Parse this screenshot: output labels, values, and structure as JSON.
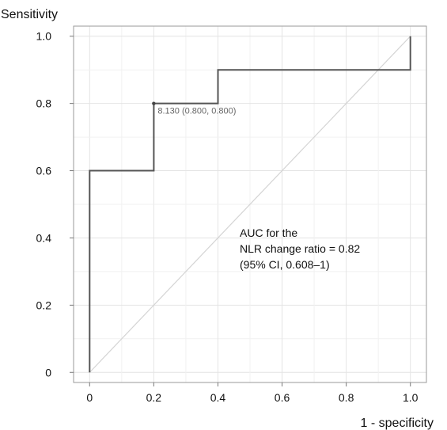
{
  "chart_data": {
    "type": "line",
    "title": "",
    "xlabel": "1 - specificity",
    "ylabel": "Sensitivity",
    "xlim": [
      -0.05,
      1.05
    ],
    "ylim": [
      -0.03,
      1.03
    ],
    "grid": true,
    "x_ticks": [
      0,
      0.2,
      0.4,
      0.6,
      0.8,
      1.0
    ],
    "x_tick_labels": [
      "0",
      "0.2",
      "0.4",
      "0.6",
      "0.8",
      "1.0"
    ],
    "y_ticks": [
      0,
      0.2,
      0.4,
      0.6,
      0.8,
      1.0
    ],
    "y_tick_labels": [
      "0",
      "0.2",
      "0.4",
      "0.6",
      "0.8",
      "1.0"
    ],
    "series": [
      {
        "style": "step",
        "color": "#555555",
        "x": [
          0,
          0,
          0.2,
          0.2,
          0.4,
          0.4,
          1.0,
          1.0
        ],
        "y": [
          0,
          0.6,
          0.6,
          0.8,
          0.8,
          0.9,
          0.9,
          1.0
        ]
      },
      {
        "style": "reference-diagonal",
        "color": "#d4d4d4",
        "x": [
          0,
          1
        ],
        "y": [
          0,
          1
        ]
      }
    ],
    "threshold_point": {
      "x": 0.2,
      "y": 0.8,
      "label": "8.130 (0.800, 0.800)"
    },
    "annotations": [
      {
        "x": 0.5,
        "y": 0.37,
        "lines": [
          "AUC for the",
          "NLR change ratio = 0.82",
          "(95% CI, 0.608–1)"
        ]
      }
    ]
  }
}
